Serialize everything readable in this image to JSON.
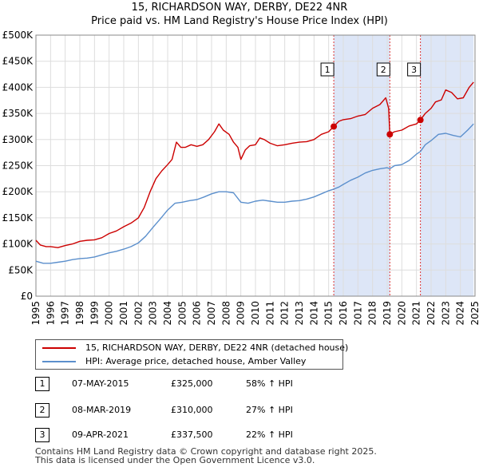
{
  "title_line1": "15, RICHARDSON WAY, DERBY, DE22 4NR",
  "title_line2": "Price paid vs. HM Land Registry's House Price Index (HPI)",
  "legend": {
    "property": "15, RICHARDSON WAY, DERBY, DE22 4NR (detached house)",
    "hpi": "HPI: Average price, detached house, Amber Valley"
  },
  "colors": {
    "property": "#cc0000",
    "hpi": "#5b8fcc",
    "shade": "#dde6f7",
    "grid": "#dddddd"
  },
  "sales": [
    {
      "num": "1",
      "date": "07-MAY-2015",
      "price": "£325,000",
      "hpi": "58% ↑ HPI",
      "x": 2015.35,
      "y": 325000
    },
    {
      "num": "2",
      "date": "08-MAR-2019",
      "price": "£310,000",
      "hpi": "27% ↑ HPI",
      "x": 2019.18,
      "y": 310000
    },
    {
      "num": "3",
      "date": "09-APR-2021",
      "price": "£337,500",
      "hpi": "22% ↑ HPI",
      "x": 2021.27,
      "y": 337500
    }
  ],
  "footer_line1": "Contains HM Land Registry data © Crown copyright and database right 2025.",
  "footer_line2": "This data is licensed under the Open Government Licence v3.0.",
  "chart_data": {
    "type": "line",
    "title": "15, RICHARDSON WAY, DERBY, DE22 4NR — Price paid vs. HM Land Registry's House Price Index (HPI)",
    "xlabel": "",
    "ylabel": "",
    "xlim": [
      1995,
      2025
    ],
    "ylim": [
      0,
      500000
    ],
    "y_ticks": [
      {
        "value": 0,
        "label": "£0"
      },
      {
        "value": 50000,
        "label": "£50K"
      },
      {
        "value": 100000,
        "label": "£100K"
      },
      {
        "value": 150000,
        "label": "£150K"
      },
      {
        "value": 200000,
        "label": "£200K"
      },
      {
        "value": 250000,
        "label": "£250K"
      },
      {
        "value": 300000,
        "label": "£300K"
      },
      {
        "value": 350000,
        "label": "£350K"
      },
      {
        "value": 400000,
        "label": "£400K"
      },
      {
        "value": 450000,
        "label": "£450K"
      },
      {
        "value": 500000,
        "label": "£500K"
      }
    ],
    "x_ticks": [
      "1995",
      "1996",
      "1997",
      "1998",
      "1999",
      "2000",
      "2001",
      "2002",
      "2003",
      "2004",
      "2005",
      "2006",
      "2007",
      "2008",
      "2009",
      "2010",
      "2011",
      "2012",
      "2013",
      "2014",
      "2015",
      "2016",
      "2017",
      "2018",
      "2019",
      "2020",
      "2021",
      "2022",
      "2023",
      "2024",
      "2025"
    ],
    "grid": true,
    "series": [
      {
        "name": "15, RICHARDSON WAY, DERBY, DE22 4NR (detached house)",
        "x": [
          1995.0,
          1995.3,
          1995.7,
          1996.0,
          1996.5,
          1997.0,
          1997.5,
          1998.0,
          1998.5,
          1999.0,
          1999.5,
          2000.0,
          2000.5,
          2001.0,
          2001.5,
          2002.0,
          2002.4,
          2002.8,
          2003.2,
          2003.6,
          2004.0,
          2004.3,
          2004.6,
          2004.9,
          2005.2,
          2005.6,
          2006.0,
          2006.4,
          2006.8,
          2007.2,
          2007.5,
          2007.8,
          2008.2,
          2008.5,
          2008.8,
          2009.0,
          2009.3,
          2009.6,
          2010.0,
          2010.3,
          2010.6,
          2011.0,
          2011.5,
          2012.0,
          2012.5,
          2013.0,
          2013.5,
          2014.0,
          2014.5,
          2015.0,
          2015.35,
          2015.7,
          2016.0,
          2016.5,
          2017.0,
          2017.5,
          2018.0,
          2018.5,
          2018.9,
          2019.1,
          2019.18,
          2019.5,
          2020.0,
          2020.5,
          2021.0,
          2021.27,
          2021.6,
          2022.0,
          2022.3,
          2022.7,
          2023.0,
          2023.4,
          2023.8,
          2024.2,
          2024.6,
          2024.9
        ],
        "y": [
          107000,
          98000,
          95000,
          95000,
          93000,
          97000,
          100000,
          105000,
          107000,
          108000,
          112000,
          120000,
          125000,
          133000,
          140000,
          150000,
          170000,
          200000,
          225000,
          240000,
          252000,
          262000,
          295000,
          285000,
          285000,
          290000,
          287000,
          290000,
          300000,
          315000,
          330000,
          318000,
          310000,
          295000,
          285000,
          262000,
          280000,
          288000,
          290000,
          303000,
          300000,
          293000,
          288000,
          290000,
          293000,
          295000,
          296000,
          300000,
          310000,
          315000,
          325000,
          335000,
          338000,
          340000,
          345000,
          348000,
          360000,
          367000,
          380000,
          360000,
          310000,
          315000,
          318000,
          326000,
          330000,
          337500,
          350000,
          360000,
          372000,
          376000,
          395000,
          390000,
          378000,
          380000,
          400000,
          410000
        ]
      },
      {
        "name": "HPI: Average price, detached house, Amber Valley",
        "x": [
          1995.0,
          1995.5,
          1996.0,
          1996.5,
          1997.0,
          1997.5,
          1998.0,
          1998.5,
          1999.0,
          1999.5,
          2000.0,
          2000.5,
          2001.0,
          2001.5,
          2002.0,
          2002.5,
          2003.0,
          2003.5,
          2004.0,
          2004.5,
          2005.0,
          2005.5,
          2006.0,
          2006.5,
          2007.0,
          2007.5,
          2008.0,
          2008.5,
          2009.0,
          2009.5,
          2010.0,
          2010.5,
          2011.0,
          2011.5,
          2012.0,
          2012.5,
          2013.0,
          2013.5,
          2014.0,
          2014.5,
          2015.0,
          2015.35,
          2015.7,
          2016.0,
          2016.5,
          2017.0,
          2017.5,
          2018.0,
          2018.5,
          2019.0,
          2019.18,
          2019.5,
          2020.0,
          2020.5,
          2021.0,
          2021.27,
          2021.6,
          2022.0,
          2022.5,
          2023.0,
          2023.5,
          2024.0,
          2024.5,
          2024.9
        ],
        "y": [
          67000,
          63000,
          63000,
          65000,
          67000,
          70000,
          72000,
          73000,
          75000,
          79000,
          83000,
          86000,
          90000,
          95000,
          102000,
          115000,
          132000,
          148000,
          165000,
          178000,
          180000,
          183000,
          185000,
          190000,
          196000,
          200000,
          200000,
          198000,
          180000,
          178000,
          182000,
          184000,
          182000,
          180000,
          180000,
          182000,
          183000,
          186000,
          190000,
          196000,
          202000,
          205000,
          209000,
          214000,
          222000,
          228000,
          236000,
          241000,
          244000,
          246000,
          244000,
          250000,
          252000,
          260000,
          272000,
          277000,
          290000,
          298000,
          310000,
          312000,
          308000,
          305000,
          318000,
          330000
        ]
      }
    ],
    "shaded_periods": [
      [
        2015.35,
        2019.18
      ],
      [
        2021.27,
        2024.9
      ]
    ],
    "annotations": [
      "1",
      "2",
      "3"
    ]
  }
}
